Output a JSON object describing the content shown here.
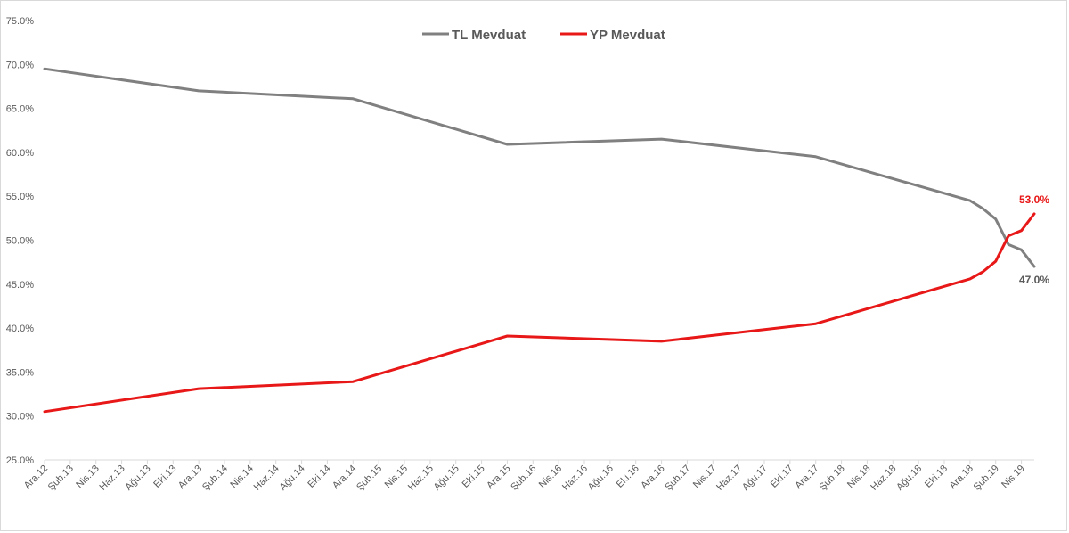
{
  "chart_data": {
    "type": "line",
    "title": "",
    "xlabel": "",
    "ylabel": "",
    "ylim": [
      25,
      75
    ],
    "yticks": [
      25,
      30,
      35,
      40,
      45,
      50,
      55,
      60,
      65,
      70,
      75
    ],
    "ytick_labels": [
      "25.0%",
      "30.0%",
      "35.0%",
      "40.0%",
      "45.0%",
      "50.0%",
      "55.0%",
      "60.0%",
      "65.0%",
      "70.0%",
      "75.0%"
    ],
    "categories": [
      "Ara.12",
      "Şub.13",
      "Nis.13",
      "Haz.13",
      "Ağu.13",
      "Eki.13",
      "Ara.13",
      "Şub.14",
      "Nis.14",
      "Haz.14",
      "Ağu.14",
      "Eki.14",
      "Ara.14",
      "Şub.15",
      "Nis.15",
      "Haz.15",
      "Ağu.15",
      "Eki.15",
      "Ara.15",
      "Şub.16",
      "Nis.16",
      "Haz.16",
      "Ağu.16",
      "Eki.16",
      "Ara.16",
      "Şub.17",
      "Nis.17",
      "Haz.17",
      "Ağu.17",
      "Eki.17",
      "Ara.17",
      "Şub.18",
      "Nis.18",
      "Haz.18",
      "Ağu.18",
      "Eki.18",
      "Ara.18",
      "Şub.19",
      "Nis.19"
    ],
    "month_range": [
      "Ara.12",
      "Nis.19"
    ],
    "grid": false,
    "legend_position": "top-center",
    "series": [
      {
        "name": "TL Mevduat",
        "color": "#808080",
        "points": [
          [
            "Ara.12",
            69.5
          ],
          [
            "Ara.13",
            67.0
          ],
          [
            "Ara.14",
            66.1
          ],
          [
            "Ara.15",
            60.9
          ],
          [
            "Ara.16",
            61.5
          ],
          [
            "Ara.17",
            59.5
          ],
          [
            "Ara.18",
            54.5
          ],
          [
            "Oca.19",
            53.6
          ],
          [
            "Şub.19",
            52.4
          ],
          [
            "Mar.19",
            49.5
          ],
          [
            "Nis.19",
            48.9
          ],
          [
            "May.19",
            47.0
          ]
        ],
        "end_label": "47.0%"
      },
      {
        "name": "YP Mevduat",
        "color": "#e81818",
        "points": [
          [
            "Ara.12",
            30.5
          ],
          [
            "Ara.13",
            33.1
          ],
          [
            "Ara.14",
            33.9
          ],
          [
            "Ara.15",
            39.1
          ],
          [
            "Ara.16",
            38.5
          ],
          [
            "Ara.17",
            40.5
          ],
          [
            "Ara.18",
            45.6
          ],
          [
            "Oca.19",
            46.4
          ],
          [
            "Şub.19",
            47.6
          ],
          [
            "Mar.19",
            50.5
          ],
          [
            "Nis.19",
            51.1
          ],
          [
            "May.19",
            53.0
          ]
        ],
        "end_label": "53.0%"
      }
    ]
  }
}
